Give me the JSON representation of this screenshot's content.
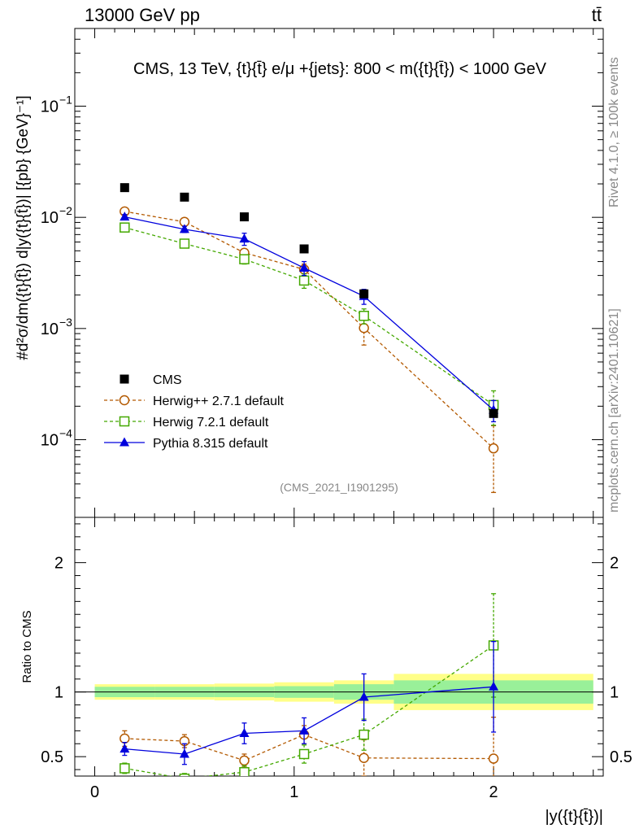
{
  "header": {
    "energy_label": "13000 GeV pp",
    "process_label": "tt̄"
  },
  "side_labels": {
    "rivet": "Rivet 4.1.0, ≥ 100k events",
    "mcplots": "mcplots.cern.ch [arXiv:2401.10621]"
  },
  "chart_data": {
    "type": "scatter",
    "title": "CMS, 13 TeV, {t}{t̄} e/μ +{jets}: 800 < m({t}{t̄}) < 1000 GeV",
    "xlabel": "|y({t}{t̄})|",
    "ylabel": "#d²σ/dm({t}{t̄}) d|y({t}{t̄})| [{pb} {GeV}⁻¹]",
    "ratio_ylabel": "Ratio to CMS",
    "analysis_id": "(CMS_2021_I1901295)",
    "xlim": [
      -0.1,
      2.55
    ],
    "ylim_log": [
      2e-05,
      0.5
    ],
    "ratio_ylim": [
      0.35,
      2.35
    ],
    "x_ticks": [
      0,
      1,
      2
    ],
    "x_tick_labels": [
      "0",
      "1",
      "2"
    ],
    "y_ticks": [
      0.1,
      0.01,
      0.001,
      0.0001
    ],
    "y_tick_labels": [
      {
        "base": "10",
        "exp": "−1"
      },
      {
        "base": "10",
        "exp": "−2"
      },
      {
        "base": "10",
        "exp": "−3"
      },
      {
        "base": "10",
        "exp": "−4"
      }
    ],
    "ratio_y_ticks": [
      0.5,
      1,
      2
    ],
    "ratio_y_tick_labels": [
      "0.5",
      "1",
      "2"
    ],
    "x": [
      0.15,
      0.45,
      0.75,
      1.05,
      1.35,
      2.0
    ],
    "bins": [
      [
        0,
        0.3
      ],
      [
        0.3,
        0.6
      ],
      [
        0.6,
        0.9
      ],
      [
        0.9,
        1.2
      ],
      [
        1.2,
        1.5
      ],
      [
        1.5,
        2.5
      ]
    ],
    "data": {
      "name": "CMS",
      "values": [
        0.0185,
        0.0152,
        0.0101,
        0.0052,
        0.00205,
        0.000172
      ],
      "band_inner": [
        0.04,
        0.04,
        0.04,
        0.045,
        0.06,
        0.09
      ],
      "band_outer": [
        0.06,
        0.06,
        0.065,
        0.075,
        0.09,
        0.14
      ],
      "errors": [
        0.0006,
        0.0005,
        0.0004,
        0.0002,
        0.00012,
        1e-05
      ]
    },
    "series": [
      {
        "name": "Herwig++ 2.7.1 default",
        "color": "#b35900",
        "marker": "open-circle",
        "dash": true,
        "values": [
          0.0113,
          0.0091,
          0.0048,
          0.0034,
          0.00101,
          8.35e-05
        ],
        "errors": [
          0.0006,
          0.0005,
          0.0004,
          0.0004,
          0.0003,
          5e-05
        ],
        "ratio": [
          0.64,
          0.62,
          0.47,
          0.67,
          0.49,
          0.485
        ],
        "ratio_errors": [
          0.06,
          0.05,
          0.05,
          0.07,
          0.14,
          0.32
        ]
      },
      {
        "name": "Herwig 7.2.1 default",
        "color": "#44a800",
        "marker": "open-square",
        "dash": true,
        "values": [
          0.0081,
          0.0058,
          0.0042,
          0.0027,
          0.0013,
          0.000205
        ],
        "errors": [
          0.0004,
          0.0004,
          0.0004,
          0.0004,
          0.0002,
          7e-05
        ],
        "ratio": [
          0.41,
          0.33,
          0.38,
          0.52,
          0.67,
          1.36
        ],
        "ratio_errors": [
          0.04,
          0.04,
          0.05,
          0.07,
          0.12,
          0.4
        ]
      },
      {
        "name": "Pythia 8.315 default",
        "color": "#0000dd",
        "marker": "filled-triangle",
        "dash": false,
        "values": [
          0.0101,
          0.0078,
          0.0064,
          0.0035,
          0.00195,
          0.000185
        ],
        "errors": [
          0.0005,
          0.0005,
          0.0008,
          0.0005,
          0.0003,
          4e-05
        ],
        "ratio": [
          0.56,
          0.52,
          0.68,
          0.7,
          0.96,
          1.04
        ],
        "ratio_errors": [
          0.05,
          0.08,
          0.08,
          0.1,
          0.18,
          0.35
        ]
      }
    ]
  }
}
